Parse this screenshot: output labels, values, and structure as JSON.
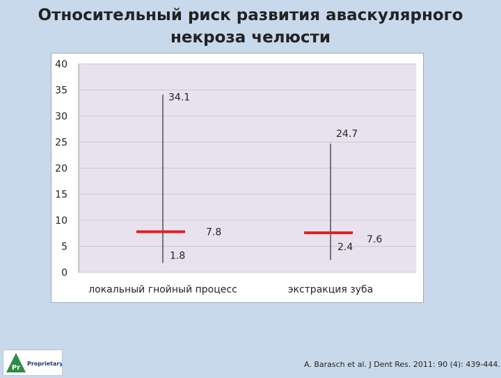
{
  "title_line1": "Относительный риск развития аваскулярного",
  "title_line2": "некроза челюсти",
  "chart_data": {
    "type": "hi-lo",
    "ylim": [
      0,
      40
    ],
    "yticks": [
      0,
      5,
      10,
      15,
      20,
      25,
      30,
      35,
      40
    ],
    "ytick_labels": [
      "0",
      "5",
      "10",
      "15",
      "20",
      "25",
      "30",
      "35",
      "40"
    ],
    "categories": [
      "локальный гнойный процесс",
      "экстракция зуба"
    ],
    "high": [
      34.1,
      24.7
    ],
    "low": [
      1.8,
      2.4
    ],
    "value": [
      7.8,
      7.6
    ],
    "high_labels": [
      "34.1",
      "24.7"
    ],
    "low_labels": [
      "1.8",
      "2.4"
    ],
    "value_labels": [
      "7.8",
      "7.6"
    ],
    "grid": true,
    "colors": {
      "marker": "#e02020",
      "whisker": "#000000",
      "grid": "#c8c8c8",
      "plot_bg": "#e8e2ee"
    }
  },
  "logo_text": "Proprietary",
  "logo_mark": "Pr",
  "citation": "A. Barasch et al. J Dent Res. 2011: 90 (4): 439-444."
}
